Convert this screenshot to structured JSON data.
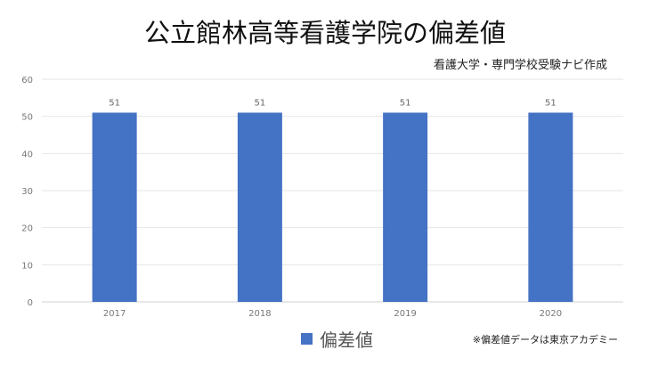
{
  "chart_data": {
    "type": "bar",
    "title": "公立館林高等看護学院の偏差値",
    "subtitle": "看護大学・専門学校受験ナビ作成",
    "categories": [
      "2017",
      "2018",
      "2019",
      "2020"
    ],
    "series": [
      {
        "name": "偏差値",
        "values": [
          51,
          51,
          51,
          51
        ],
        "color": "#4472c4"
      }
    ],
    "ylim": [
      0,
      60
    ],
    "yticks": [
      0,
      10,
      20,
      30,
      40,
      50,
      60
    ],
    "grid": true,
    "legend": "bottom",
    "data_labels": true,
    "note": "※偏差値データは東京アカデミー"
  }
}
